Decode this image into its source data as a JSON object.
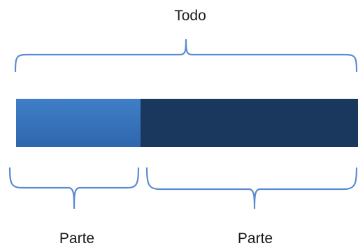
{
  "labels": {
    "whole": "Todo",
    "part_left": "Parte",
    "part_right": "Parte"
  },
  "colors": {
    "part_left_light": "#3f7fc8",
    "part_left_dark": "#2f66ad",
    "part_right": "#1a385e",
    "bracket": "#5b8bd0"
  }
}
